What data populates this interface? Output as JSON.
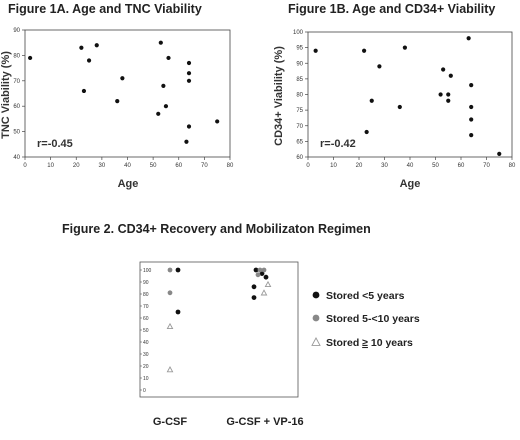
{
  "figure_titles": {
    "fig1a": "Figure 1A. Age and TNC Viability",
    "fig1b": "Figure 1B. Age and CD34+ Viability",
    "fig2": "Figure 2. CD34+ Recovery and Mobilizaton Regimen"
  },
  "colors": {
    "black": "#111111",
    "gray": "#888888",
    "open": "#999999"
  },
  "chart_data": [
    {
      "type": "scatter",
      "title": "Figure 1A. Age and TNC Viability",
      "xlabel": "Age",
      "ylabel": "TNC Viability (%)",
      "annotation": "r=-0.45",
      "xlim": [
        0,
        80
      ],
      "ylim": [
        40,
        90
      ],
      "xticks": [
        "0",
        "10",
        "20",
        "30",
        "40",
        "50",
        "60",
        "70",
        "80"
      ],
      "yticks": [
        "40",
        "50",
        "60",
        "70",
        "80",
        "90"
      ],
      "points": [
        [
          2,
          79
        ],
        [
          22,
          83
        ],
        [
          23,
          66
        ],
        [
          25,
          78
        ],
        [
          28,
          84
        ],
        [
          36,
          62
        ],
        [
          38,
          71
        ],
        [
          52,
          57
        ],
        [
          53,
          85
        ],
        [
          54,
          68
        ],
        [
          55,
          60
        ],
        [
          56,
          79
        ],
        [
          63,
          46
        ],
        [
          64,
          52
        ],
        [
          64,
          70
        ],
        [
          64,
          73
        ],
        [
          64,
          77
        ],
        [
          75,
          54
        ]
      ]
    },
    {
      "type": "scatter",
      "title": "Figure 1B. Age and CD34+ Viability",
      "xlabel": "Age",
      "ylabel": "CD34+ Viability (%)",
      "annotation": "r=-0.42",
      "xlim": [
        0,
        80
      ],
      "ylim": [
        60,
        100
      ],
      "xticks": [
        "0",
        "10",
        "20",
        "30",
        "40",
        "50",
        "60",
        "70",
        "80"
      ],
      "yticks": [
        "60",
        "65",
        "70",
        "75",
        "80",
        "85",
        "90",
        "95",
        "100"
      ],
      "points": [
        [
          3,
          94
        ],
        [
          22,
          94
        ],
        [
          23,
          68
        ],
        [
          25,
          78
        ],
        [
          28,
          89
        ],
        [
          36,
          76
        ],
        [
          38,
          95
        ],
        [
          52,
          80
        ],
        [
          53,
          88
        ],
        [
          55,
          78
        ],
        [
          55,
          80
        ],
        [
          56,
          86
        ],
        [
          63,
          98
        ],
        [
          64,
          67
        ],
        [
          64,
          72
        ],
        [
          64,
          76
        ],
        [
          64,
          83
        ],
        [
          75,
          61
        ]
      ]
    },
    {
      "type": "scatter",
      "title": "Figure 2. CD34+ Recovery and Mobilizaton Regimen",
      "categories": [
        "G-CSF",
        "G-CSF + VP-16"
      ],
      "ylim": [
        0,
        100
      ],
      "yticks": [
        "0",
        "10",
        "20",
        "30",
        "40",
        "50",
        "60",
        "70",
        "80",
        "90",
        "100"
      ],
      "legend": [
        "Stored <5 years",
        "Stored 5-<10 years",
        "Stored ≥ 10 years"
      ],
      "legend_position": "right",
      "series": [
        {
          "name": "Stored <5 years",
          "marker": "filled-black",
          "points": [
            [
              0,
              100
            ],
            [
              0,
              65
            ],
            [
              1,
              100
            ],
            [
              1,
              97
            ],
            [
              1,
              94
            ],
            [
              1,
              86
            ],
            [
              1,
              77
            ]
          ]
        },
        {
          "name": "Stored 5-<10 years",
          "marker": "filled-gray",
          "points": [
            [
              0,
              100
            ],
            [
              0,
              81
            ],
            [
              1,
              100
            ],
            [
              1,
              100
            ],
            [
              1,
              96
            ]
          ]
        },
        {
          "name": "Stored ≥ 10 years",
          "marker": "open-triangle",
          "points": [
            [
              0,
              53
            ],
            [
              0,
              17
            ],
            [
              1,
              88
            ],
            [
              1,
              81
            ]
          ]
        }
      ]
    }
  ]
}
